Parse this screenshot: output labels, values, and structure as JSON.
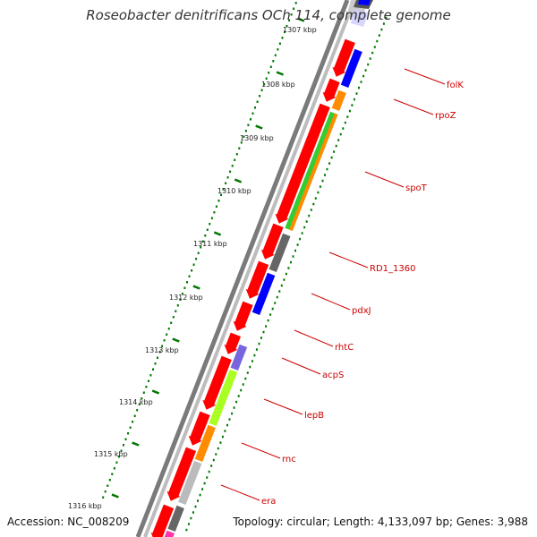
{
  "title": "Roseobacter denitrificans OCh 114, complete genome",
  "footer": {
    "accession": "Accession: NC_008209",
    "summary": "Topology: circular; Length: 4,133,097 bp; Genes: 3,988"
  },
  "ticks": [
    "1307 kbp",
    "1308 kbp",
    "1309 kbp",
    "1310 kbp",
    "1311 kbp",
    "1312 kbp",
    "1313 kbp",
    "1314 kbp",
    "1315 kbp",
    "1316 kbp"
  ],
  "genes": [
    {
      "label": "folK"
    },
    {
      "label": "rpoZ"
    },
    {
      "label": "spoT"
    },
    {
      "label": "RD1_1360"
    },
    {
      "label": "pdxJ"
    },
    {
      "label": "rhtC"
    },
    {
      "label": "acpS"
    },
    {
      "label": "lepB"
    },
    {
      "label": "rnc"
    },
    {
      "label": "era"
    }
  ],
  "colors": {
    "backbone": "#888888",
    "forward_strand": "#ff0000",
    "tick_marks": "#007700",
    "label_lines": "#cc0000",
    "blue": "#0000ff",
    "orange": "#ff8c00",
    "green": "#33cc33",
    "grey": "#666666",
    "light_grey": "#bbbbbb",
    "purple": "#7766dd",
    "lime": "#aaff22",
    "magenta": "#ff33aa"
  }
}
